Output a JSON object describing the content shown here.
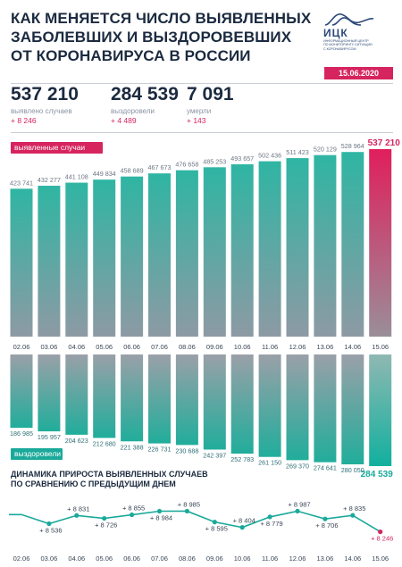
{
  "title": {
    "line1": "КАК МЕНЯЕТСЯ ЧИСЛО ВЫЯВЛЕННЫХ",
    "line2": "ЗАБОЛЕВШИХ И ВЫЗДОРОВЕВШИХ",
    "line3": "ОТ КОРОНАВИРУСА В РОССИИ"
  },
  "logo": {
    "name": "ИЦК",
    "subtitle": "ИНФОРМАЦИОННЫЙ ЦЕНТР\nПО МОНИТОРИНГУ СИТУАЦИИ\nС КОРОНАВИРУСОМ",
    "color": "#2d4a7a"
  },
  "date": "15.06.2020",
  "summary": [
    {
      "value": "537 210",
      "label": "выявлено случаев",
      "delta": "+ 8 246"
    },
    {
      "value": "284 539",
      "label": "выздоровели",
      "delta": "+ 4 489"
    },
    {
      "value": "7 091",
      "label": "умерли",
      "delta": "+ 143"
    }
  ],
  "labels": {
    "cases": "выявленные случаи",
    "recovered": "выздоровели"
  },
  "dynamics_title": {
    "line1": "ДИНАМИКА ПРИРОСТА ВЫЯВЛЕННЫХ СЛУЧАЕВ",
    "line2": "ПО СРАВНЕНИЮ С ПРЕДЫДУЩИМ ДНЕМ"
  },
  "colors": {
    "accent": "#d6245f",
    "teal": "#1aa99a",
    "gray": "#9aa0a8"
  },
  "chart_data": [
    {
      "type": "bar",
      "categories": [
        "02.06",
        "03.06",
        "04.06",
        "05.06",
        "06.06",
        "07.06",
        "08.06",
        "09.06",
        "10.06",
        "11.06",
        "12.06",
        "13.06",
        "14.06",
        "15.06"
      ],
      "series": [
        {
          "name": "выявленные случаи",
          "values": [
            423741,
            432277,
            441108,
            449834,
            458689,
            467673,
            476658,
            485253,
            493657,
            502436,
            511423,
            520129,
            528964,
            537210
          ]
        }
      ],
      "value_labels": [
        "423 741",
        "432 277",
        "441 108",
        "449 834",
        "458 689",
        "467 673",
        "476 658",
        "485 253",
        "493 657",
        "502 436",
        "511 423",
        "520 129",
        "528 964",
        "537 210"
      ]
    },
    {
      "type": "bar",
      "categories": [
        "02.06",
        "03.06",
        "04.06",
        "05.06",
        "06.06",
        "07.06",
        "08.06",
        "09.06",
        "10.06",
        "11.06",
        "12.06",
        "13.06",
        "14.06",
        "15.06"
      ],
      "series": [
        {
          "name": "выздоровели",
          "values": [
            186985,
            195957,
            204623,
            212680,
            221388,
            226731,
            230688,
            242397,
            252783,
            261150,
            269370,
            274641,
            280050,
            284539
          ]
        }
      ],
      "value_labels": [
        "186 985",
        "195 957",
        "204 623",
        "212 680",
        "221 388",
        "226 731",
        "230 688",
        "242 397",
        "252 783",
        "261 150",
        "269 370",
        "274 641",
        "280 050",
        "284 539"
      ]
    },
    {
      "type": "line",
      "title": "ДИНАМИКА ПРИРОСТА ВЫЯВЛЕННЫХ СЛУЧАЕВ ПО СРАВНЕНИЮ С ПРЕДЫДУЩИМ ДНЕМ",
      "categories": [
        "02.06",
        "03.06",
        "04.06",
        "05.06",
        "06.06",
        "07.06",
        "08.06",
        "09.06",
        "10.06",
        "11.06",
        "12.06",
        "13.06",
        "14.06",
        "15.06"
      ],
      "series": [
        {
          "values": [
            8863,
            8536,
            8831,
            8726,
            8855,
            8984,
            8985,
            8595,
            8404,
            8779,
            8987,
            8706,
            8835,
            8246
          ]
        }
      ],
      "value_labels": [
        "",
        "+ 8 536",
        "+ 8 831",
        "+ 8 726",
        "+ 8 855",
        "+ 8 984",
        "+ 8 985",
        "+ 8 595",
        "+ 8 404",
        "+ 8 779",
        "+ 8 987",
        "+ 8 706",
        "+ 8 835",
        "+ 8 246"
      ]
    }
  ]
}
